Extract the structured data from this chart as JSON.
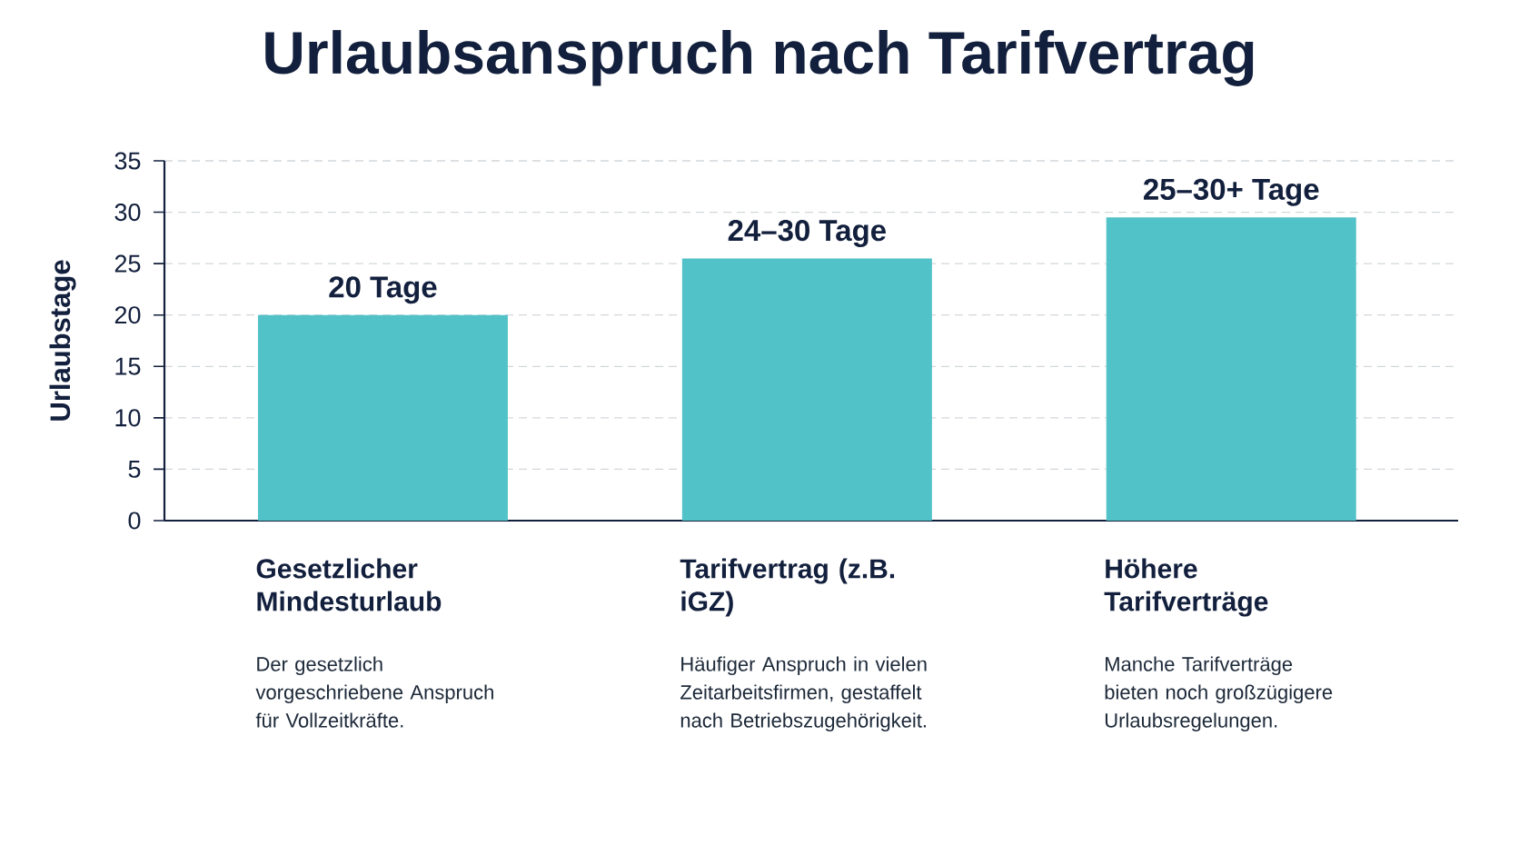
{
  "chart_data": {
    "type": "bar",
    "title": "Urlaubsanspruch nach Tarifvertrag",
    "ylabel": "Urlaubstage",
    "categories": [
      "Gesetzlicher Mindesturlaub",
      "Tarifvertrag (z.B. iGZ)",
      "Höhere Tarifverträge"
    ],
    "values": [
      20,
      25.5,
      29.5
    ],
    "value_labels": [
      "20 Tage",
      "24–30 Tage",
      "25–30+ Tage"
    ],
    "color": "#52c2c9",
    "ylim": [
      0,
      35
    ],
    "yticks": [
      0,
      5,
      10,
      15,
      20,
      25,
      30,
      35
    ],
    "grid": "y",
    "annotations": [
      "Der gesetzlich vorgeschriebene Anspruch für Vollzeitkräfte.",
      "Häufiger Anspruch in vielen Zeitarbeitsfirmen, gestaffelt nach Betriebszugehörigkeit.",
      "Manche Tarifverträge bieten noch großzügigere Urlaubsregelungen."
    ]
  }
}
